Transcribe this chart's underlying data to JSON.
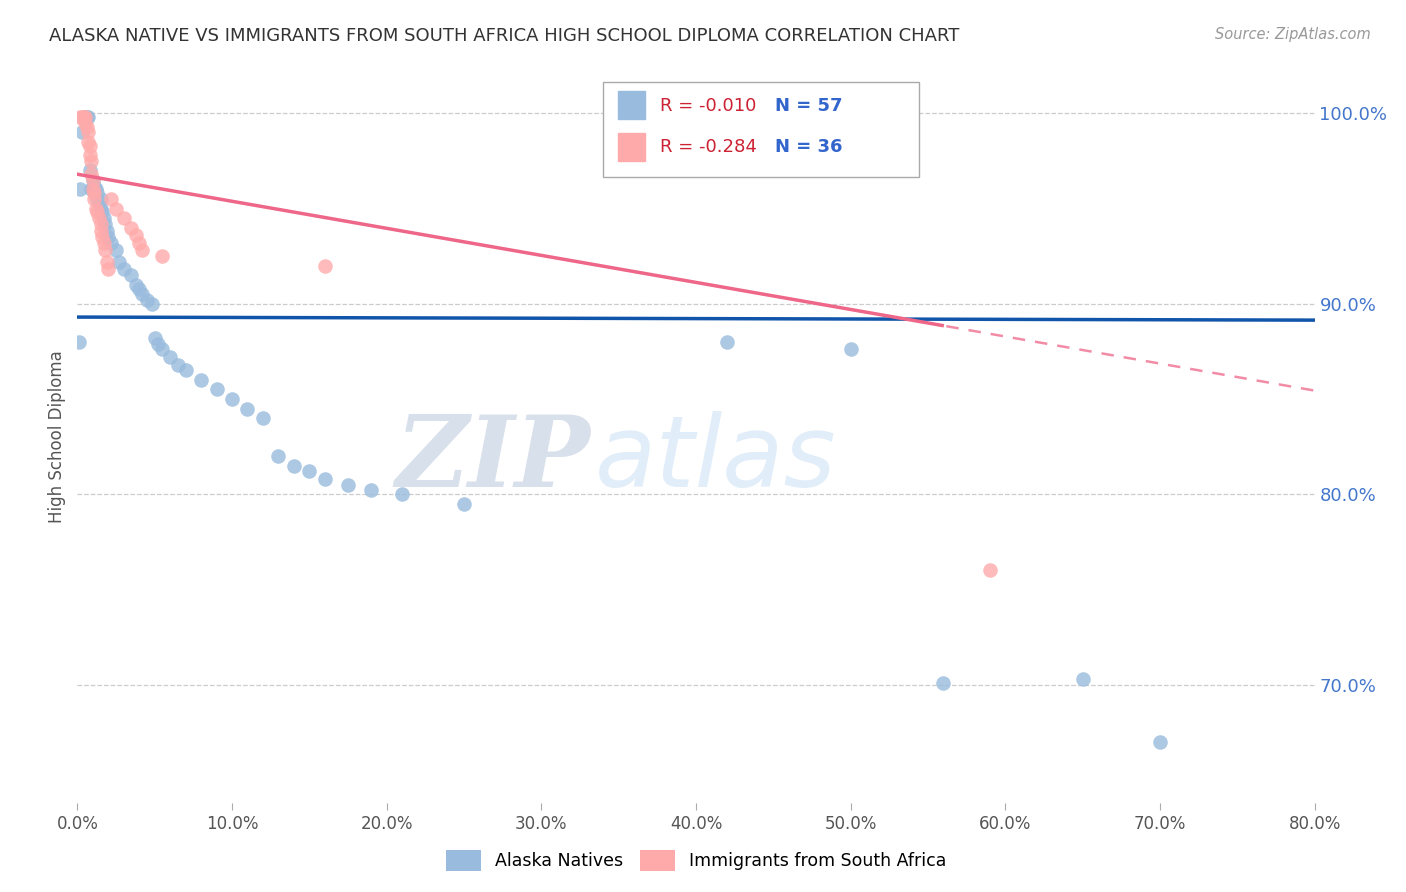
{
  "title": "ALASKA NATIVE VS IMMIGRANTS FROM SOUTH AFRICA HIGH SCHOOL DIPLOMA CORRELATION CHART",
  "source": "Source: ZipAtlas.com",
  "ylabel": "High School Diploma",
  "xlim": [
    0.0,
    0.8
  ],
  "ylim": [
    0.638,
    1.022
  ],
  "xticks": [
    0.0,
    0.1,
    0.2,
    0.3,
    0.4,
    0.5,
    0.6,
    0.7,
    0.8
  ],
  "yticks": [
    0.7,
    0.8,
    0.9,
    1.0
  ],
  "ytick_labels": [
    "70.0%",
    "80.0%",
    "90.0%",
    "100.0%"
  ],
  "xtick_labels": [
    "0.0%",
    "10.0%",
    "20.0%",
    "30.0%",
    "40.0%",
    "50.0%",
    "60.0%",
    "70.0%",
    "80.0%"
  ],
  "blue_label": "Alaska Natives",
  "pink_label": "Immigrants from South Africa",
  "blue_R": "-0.010",
  "blue_N": "57",
  "pink_R": "-0.284",
  "pink_N": "36",
  "blue_color": "#99BBDD",
  "pink_color": "#FFAAAA",
  "blue_trend_color": "#1155AA",
  "pink_trend_color": "#EE6688",
  "watermark_zip": "ZIP",
  "watermark_atlas": "atlas",
  "blue_trend_intercept": 0.893,
  "blue_trend_slope": -0.002,
  "pink_trend_intercept": 0.968,
  "pink_trend_slope": -0.142,
  "blue_x": [
    0.001,
    0.002,
    0.003,
    0.004,
    0.005,
    0.006,
    0.007,
    0.008,
    0.009,
    0.01,
    0.01,
    0.011,
    0.012,
    0.013,
    0.013,
    0.014,
    0.015,
    0.015,
    0.016,
    0.017,
    0.018,
    0.019,
    0.02,
    0.022,
    0.025,
    0.027,
    0.03,
    0.035,
    0.038,
    0.04,
    0.042,
    0.045,
    0.048,
    0.05,
    0.052,
    0.055,
    0.06,
    0.065,
    0.07,
    0.08,
    0.09,
    0.1,
    0.11,
    0.12,
    0.13,
    0.14,
    0.15,
    0.16,
    0.175,
    0.19,
    0.21,
    0.25,
    0.42,
    0.5,
    0.56,
    0.65,
    0.7
  ],
  "blue_y": [
    0.88,
    0.96,
    0.99,
    0.998,
    0.998,
    0.998,
    0.998,
    0.97,
    0.96,
    0.96,
    0.965,
    0.962,
    0.96,
    0.958,
    0.955,
    0.952,
    0.95,
    0.955,
    0.948,
    0.945,
    0.942,
    0.938,
    0.935,
    0.932,
    0.928,
    0.922,
    0.918,
    0.915,
    0.91,
    0.908,
    0.905,
    0.902,
    0.9,
    0.882,
    0.879,
    0.876,
    0.872,
    0.868,
    0.865,
    0.86,
    0.855,
    0.85,
    0.845,
    0.84,
    0.82,
    0.815,
    0.812,
    0.808,
    0.805,
    0.802,
    0.8,
    0.795,
    0.88,
    0.876,
    0.701,
    0.703,
    0.67
  ],
  "pink_x": [
    0.002,
    0.003,
    0.004,
    0.005,
    0.005,
    0.006,
    0.007,
    0.007,
    0.008,
    0.008,
    0.009,
    0.009,
    0.01,
    0.01,
    0.011,
    0.011,
    0.012,
    0.013,
    0.014,
    0.015,
    0.015,
    0.016,
    0.017,
    0.018,
    0.019,
    0.02,
    0.022,
    0.025,
    0.03,
    0.035,
    0.038,
    0.04,
    0.042,
    0.055,
    0.16,
    0.59
  ],
  "pink_y": [
    0.998,
    0.998,
    0.998,
    0.998,
    0.995,
    0.993,
    0.99,
    0.985,
    0.983,
    0.978,
    0.975,
    0.968,
    0.965,
    0.96,
    0.958,
    0.955,
    0.95,
    0.948,
    0.945,
    0.942,
    0.938,
    0.935,
    0.932,
    0.928,
    0.922,
    0.918,
    0.955,
    0.95,
    0.945,
    0.94,
    0.936,
    0.932,
    0.928,
    0.925,
    0.92,
    0.76
  ]
}
